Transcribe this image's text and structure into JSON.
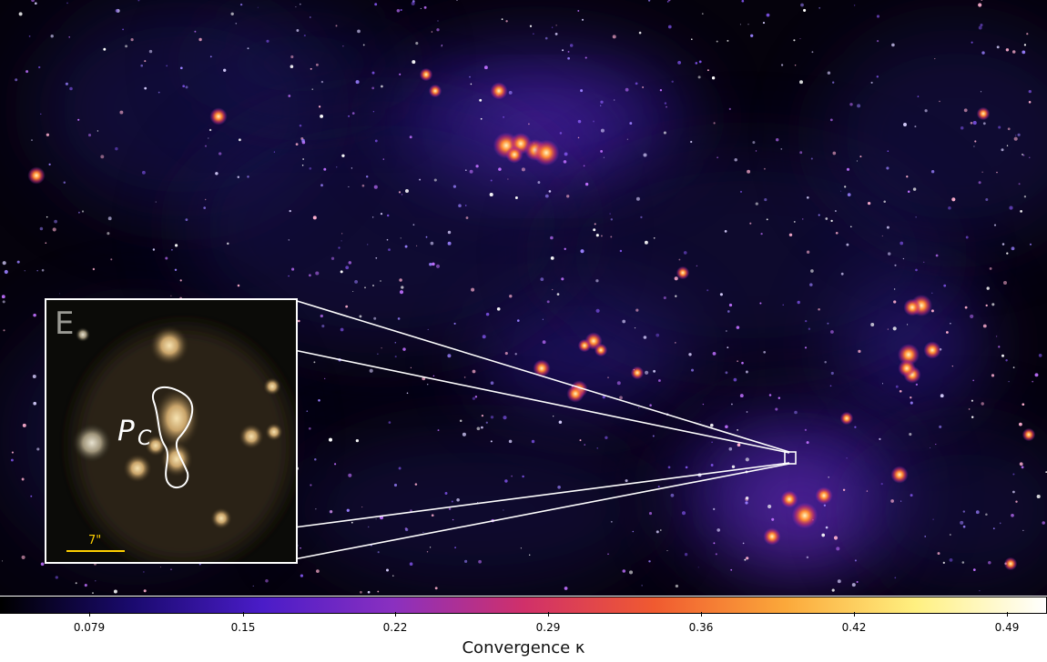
{
  "panel_letter": "E",
  "source_label_main": "P",
  "source_label_sub": "C",
  "scale_bar_label": "7\"",
  "colorbar": {
    "label": "Convergence κ",
    "tick_labels": [
      "0.079",
      "0.15",
      "0.22",
      "0.29",
      "0.36",
      "0.42",
      "0.49"
    ],
    "colormap": [
      "#000000",
      "#1a0a6e",
      "#4a1cc8",
      "#8a30c0",
      "#d0306a",
      "#f05a30",
      "#fba83a",
      "#fff080",
      "#ffffff"
    ]
  }
}
